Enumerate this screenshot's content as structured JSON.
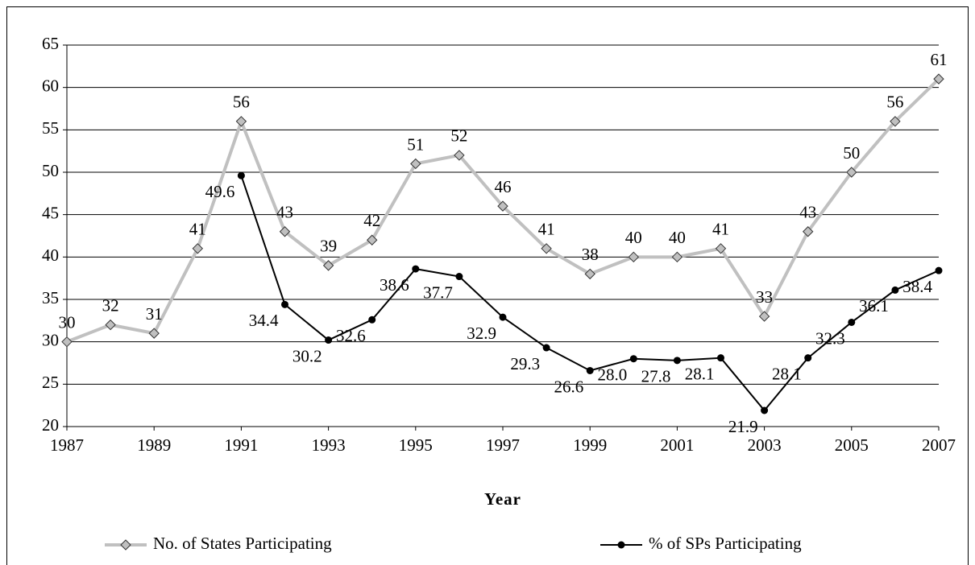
{
  "chart_data": {
    "type": "line",
    "x": [
      1987,
      1988,
      1989,
      1990,
      1991,
      1992,
      1993,
      1994,
      1995,
      1996,
      1997,
      1998,
      1999,
      2000,
      2001,
      2002,
      2003,
      2004,
      2005,
      2006,
      2007
    ],
    "xlabel": "Year",
    "xlim": [
      1987,
      2007
    ],
    "xticks": [
      1987,
      1989,
      1991,
      1993,
      1995,
      1997,
      1999,
      2001,
      2003,
      2005,
      2007
    ],
    "ylim": [
      20,
      65
    ],
    "yticks": [
      20,
      25,
      30,
      35,
      40,
      45,
      50,
      55,
      60,
      65
    ],
    "grid": true,
    "legend": "bottom",
    "series": [
      {
        "name": "No. of States Participating",
        "color": "#c0c0c0",
        "marker": "diamond",
        "values": [
          30,
          32,
          31,
          41,
          56,
          43,
          39,
          42,
          51,
          52,
          46,
          41,
          38,
          40,
          40,
          41,
          33,
          43,
          50,
          56,
          61
        ]
      },
      {
        "name": "% of SPs Participating",
        "color": "#000000",
        "marker": "circle",
        "values": [
          null,
          null,
          null,
          null,
          49.6,
          34.4,
          30.2,
          32.6,
          38.6,
          37.7,
          32.9,
          29.3,
          26.6,
          28.0,
          27.8,
          28.1,
          21.9,
          28.1,
          32.3,
          36.1,
          38.4
        ],
        "value_labels": [
          null,
          null,
          null,
          null,
          "49.6",
          "34.4",
          "30.2",
          "32.6",
          "38.6",
          "37.7",
          "32.9",
          "29.3",
          "26.6",
          "28.0",
          "27.8",
          "28.1",
          "21.9",
          "28.1",
          "32.3",
          "36.1",
          "38.4"
        ]
      }
    ]
  }
}
